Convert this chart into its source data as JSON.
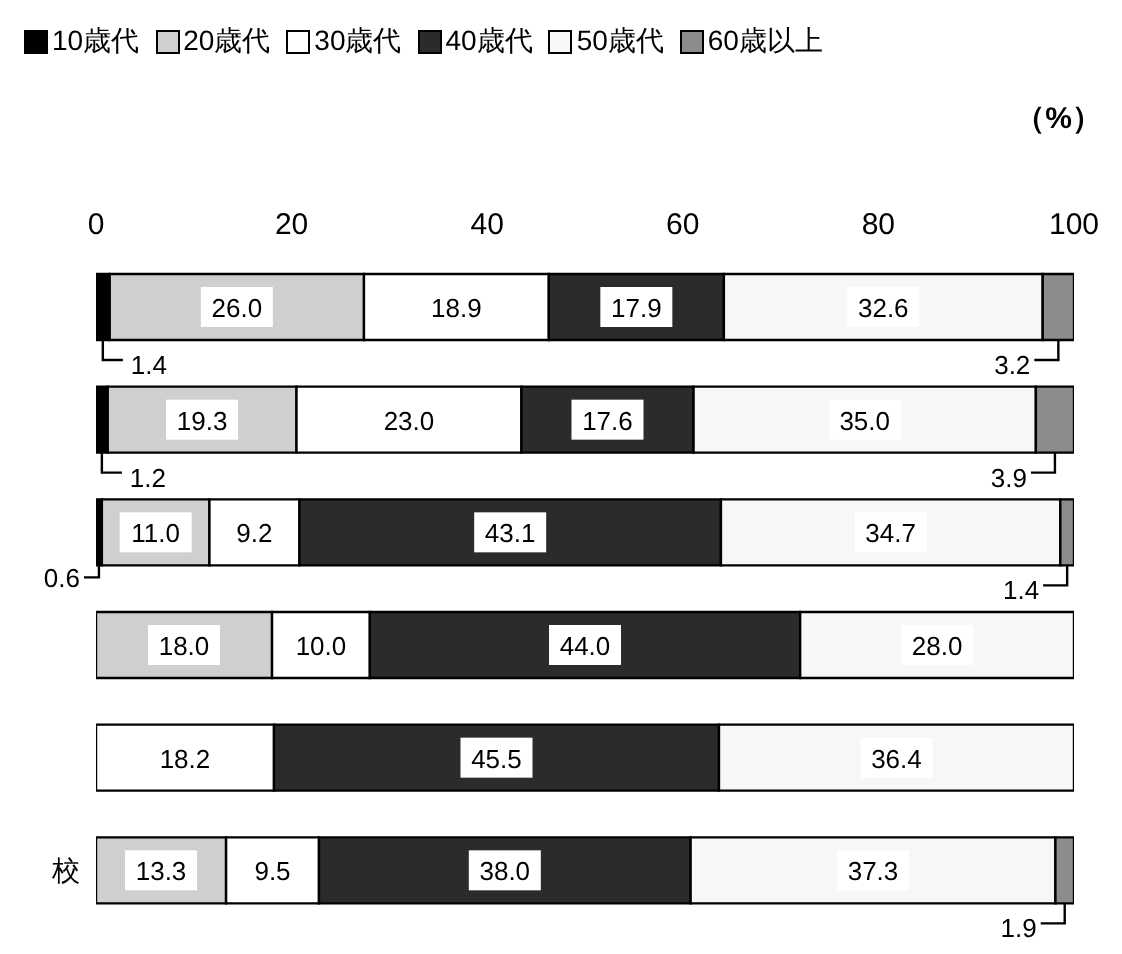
{
  "chart_data": {
    "type": "bar",
    "orientation": "horizontal",
    "stacked": true,
    "xlabel": "（%）",
    "categories": [
      null,
      null,
      null,
      null,
      null,
      "校"
    ],
    "xlim": [
      0,
      100
    ],
    "xticks": [
      0,
      20,
      40,
      60,
      80,
      100
    ],
    "legend": "top",
    "data_labels": true,
    "series": [
      {
        "name": "10歳代",
        "color": "#000000",
        "values": [
          1.4,
          1.2,
          0.6,
          null,
          null,
          null
        ],
        "value_labels": [
          "1.4",
          "1.2",
          "0.6",
          null,
          null,
          null
        ]
      },
      {
        "name": "20歳代",
        "color": "#cfcfcf",
        "values": [
          26.0,
          19.3,
          11.0,
          18.0,
          null,
          13.3
        ],
        "value_labels": [
          "26.0",
          "19.3",
          "11.0",
          "18.0",
          null,
          "13.3"
        ]
      },
      {
        "name": "30歳代",
        "color": "#ffffff",
        "values": [
          18.9,
          23.0,
          9.2,
          10.0,
          18.2,
          9.5
        ],
        "value_labels": [
          "18.9",
          "23.0",
          "9.2",
          "10.0",
          "18.2",
          "9.5"
        ]
      },
      {
        "name": "40歳代",
        "color": "#2b2b2b",
        "values": [
          17.9,
          17.6,
          43.1,
          44.0,
          45.5,
          38.0
        ],
        "value_labels": [
          "17.9",
          "17.6",
          "43.1",
          "44.0",
          "45.5",
          "38.0"
        ]
      },
      {
        "name": "50歳代",
        "color": "#f7f7f7",
        "values": [
          32.6,
          35.0,
          34.7,
          28.0,
          36.4,
          37.3
        ],
        "value_labels": [
          "32.6",
          "35.0",
          "34.7",
          "28.0",
          "36.4",
          "37.3"
        ]
      },
      {
        "name": "60歳以上",
        "color": "#8c8c8c",
        "values": [
          3.2,
          3.9,
          1.4,
          null,
          null,
          1.9
        ],
        "value_labels": [
          "3.2",
          "3.9",
          "1.4",
          null,
          null,
          "1.9"
        ]
      }
    ]
  }
}
